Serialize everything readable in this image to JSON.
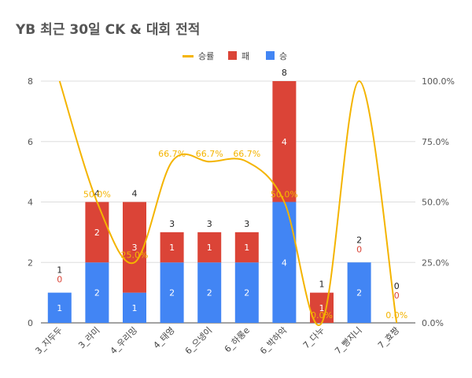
{
  "chart_data": {
    "type": "bar",
    "title": "YB 최근 30일 CK & 대회 전적",
    "categories": [
      "3_지두두",
      "3_라미",
      "4_우리밍",
      "4_태영",
      "6_으넹이",
      "6_하롱e",
      "6_박하악",
      "7_다누",
      "7_빵지니",
      "7_효짱"
    ],
    "series": [
      {
        "name": "승",
        "type": "bar",
        "values": [
          1,
          2,
          1,
          2,
          2,
          2,
          4,
          0,
          2,
          0
        ]
      },
      {
        "name": "패",
        "type": "bar",
        "values": [
          0,
          2,
          3,
          1,
          1,
          1,
          4,
          1,
          0,
          0
        ]
      },
      {
        "name": "승률",
        "type": "line",
        "axis": "right",
        "values": [
          100.0,
          50.0,
          25.0,
          66.7,
          66.7,
          66.7,
          50.0,
          0.0,
          100.0,
          0.0
        ]
      }
    ],
    "totals": [
      1,
      4,
      4,
      3,
      3,
      3,
      8,
      1,
      2,
      0
    ],
    "pct_labels": [
      "",
      "50.0%",
      "25.0%",
      "66.7%",
      "66.7%",
      "66.7%",
      "50.0%",
      "0.0%",
      "",
      "0.0%"
    ],
    "ylim": [
      0,
      8
    ],
    "y_ticks": [
      "0",
      "2",
      "4",
      "6",
      "8"
    ],
    "y2lim": [
      0,
      100
    ],
    "y2_ticks": [
      "0.0%",
      "25.0%",
      "50.0%",
      "75.0%",
      "100.0%"
    ],
    "legend_position": "top",
    "legend": [
      "승률",
      "패",
      "승"
    ],
    "stacked": true,
    "grid": true,
    "colors": {
      "win": "#4285f4",
      "loss": "#db4437",
      "rate": "#f4b400",
      "grid": "#dddddd",
      "axis": "#444444"
    }
  }
}
